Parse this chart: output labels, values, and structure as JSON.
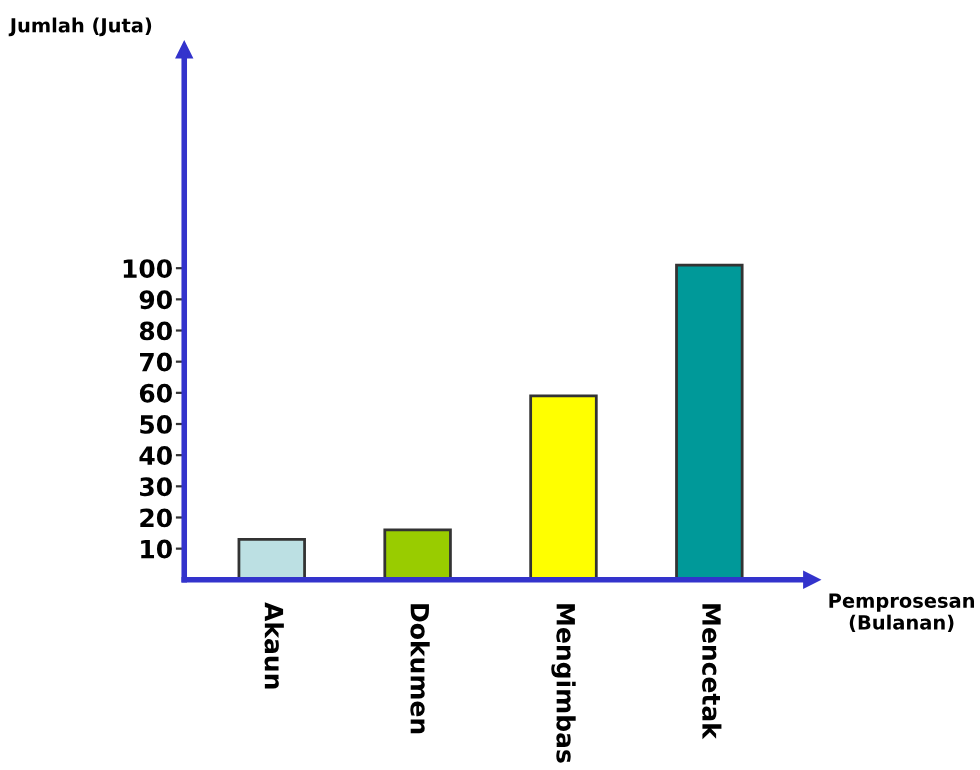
{
  "chart_data": {
    "type": "bar",
    "categories": [
      "Akaun",
      "Dokumen",
      "Mengimbas",
      "Mencetak"
    ],
    "values": [
      13,
      16,
      59,
      101
    ],
    "colors": [
      "#bce0e3",
      "#99cc00",
      "#ffff00",
      "#009999"
    ],
    "xlabel": "Pemprosesan\n(Bulanan)",
    "ylabel": "Jumlah (Juta)",
    "ylim": [
      0,
      170
    ],
    "yticks": [
      10,
      20,
      30,
      40,
      50,
      60,
      70,
      80,
      90,
      100
    ],
    "grid": false,
    "legend": false
  }
}
